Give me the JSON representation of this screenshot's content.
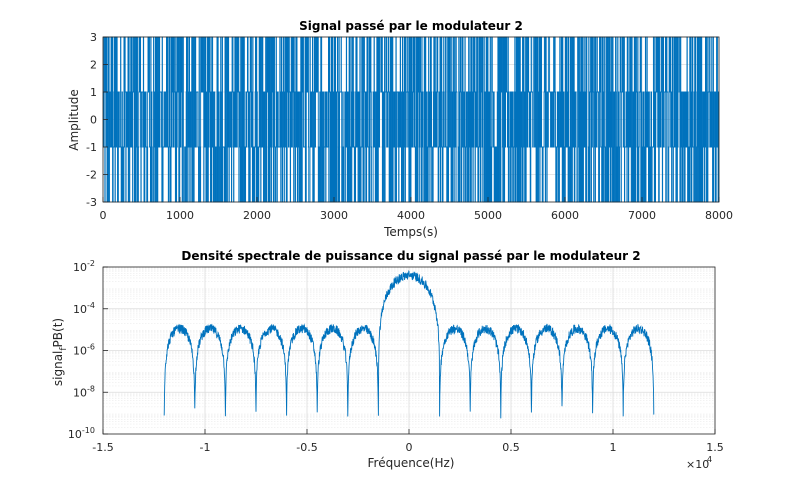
{
  "chart_data": [
    {
      "type": "line",
      "title": "Signal passé par le modulateur 2",
      "xlabel": "Temps(s)",
      "ylabel": "Amplitude",
      "xlim": [
        0,
        8000
      ],
      "ylim": [
        -3,
        3
      ],
      "xticks": [
        "0",
        "1000",
        "2000",
        "3000",
        "4000",
        "5000",
        "6000",
        "7000",
        "8000"
      ],
      "yticks": [
        "-3",
        "-2",
        "-1",
        "0",
        "1",
        "2",
        "3"
      ],
      "grid": true,
      "series": [
        {
          "color": "#0072bd",
          "style": "stairs",
          "levels": [
            -3,
            -1,
            1,
            3
          ],
          "x_range": [
            0,
            8000
          ],
          "symbol_count": 2000
        }
      ]
    },
    {
      "type": "line",
      "title": "Densité spectrale de puissance du signal passé par le modulateur 2",
      "xlabel": "Fréquence(Hz)",
      "ylabel": "signal_fPB(t)",
      "x_scale_exponent": "×10^4",
      "xlim": [
        -15000,
        15000
      ],
      "ylim": [
        1e-10,
        0.01
      ],
      "yscale": "log",
      "xticks": [
        "-1.5",
        "-1",
        "-0.5",
        "0",
        "0.5",
        "1",
        "1.5"
      ],
      "yticks": [
        "10^-10",
        "10^-8",
        "10^-6",
        "10^-4",
        "10^-2"
      ],
      "grid": true,
      "series": [
        {
          "color": "#0072bd",
          "x_range": [
            -12000,
            12000
          ],
          "main_lobe_peak": 0.004,
          "main_lobe_null_spacing": 1500,
          "sidelobe_peak": 1e-05,
          "null_floor": 1e-09
        }
      ]
    }
  ]
}
